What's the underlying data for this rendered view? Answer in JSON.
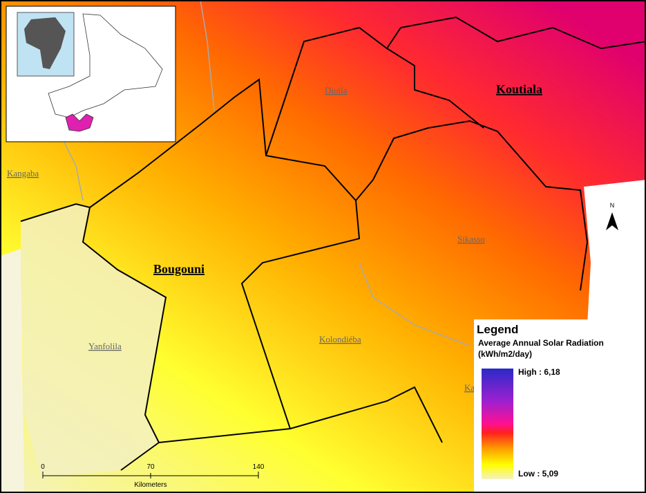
{
  "regions": [
    "Koutiala",
    "Bougouni"
  ],
  "towns": [
    "Dioïla",
    "Kangaba",
    "Sikasso",
    "Yanfolila",
    "Kolondiéba",
    "Ka"
  ],
  "legend": {
    "title": "Legend",
    "subtitle": "Average Annual Solar Radiation",
    "unit": "(kWh/m2/day)",
    "high": "High : 6,18",
    "low": "Low : 5,09"
  },
  "scale_bar": {
    "ticks": [
      "0",
      "70",
      "140"
    ],
    "unit": "Kilometers"
  },
  "north": "N"
}
